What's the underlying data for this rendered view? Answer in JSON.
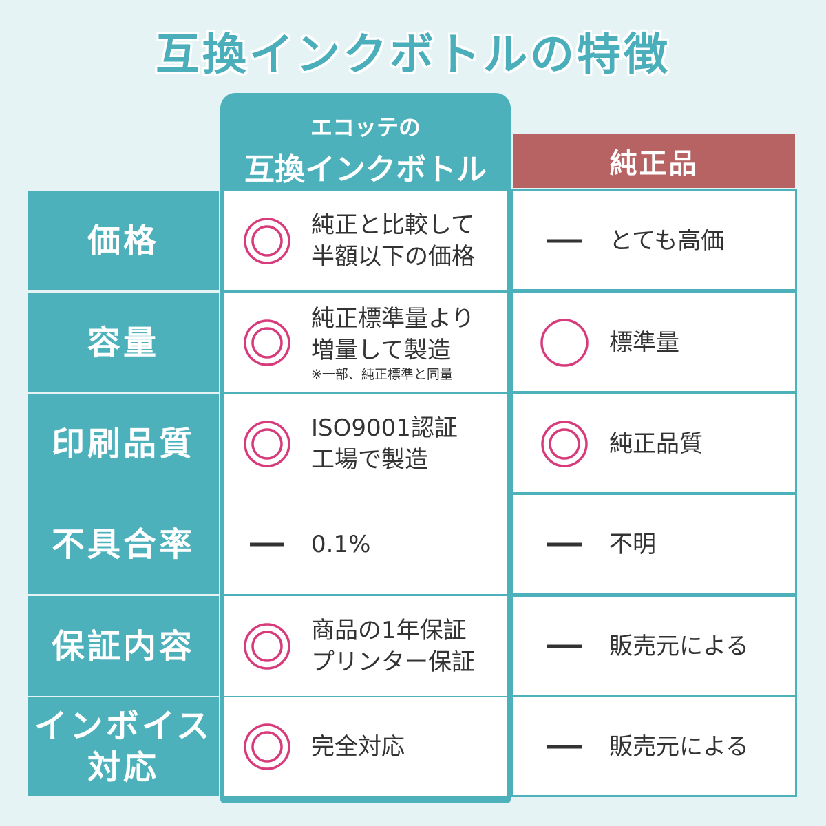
{
  "title": "互換インクボトルの特徴",
  "columns": {
    "ours": [
      "エコッテの",
      "互換インクボトル"
    ],
    "genuine": "純正品"
  },
  "rows": [
    {
      "label": [
        "価格"
      ],
      "ours": {
        "mark": "◎",
        "text": [
          "純正と比較して",
          "半額以下の価格"
        ]
      },
      "genuine": {
        "mark": "—",
        "text": [
          "とても高価"
        ]
      }
    },
    {
      "label": [
        "容量"
      ],
      "ours": {
        "mark": "◎",
        "text": [
          "純正標準量より",
          "増量して製造"
        ],
        "note": "※一部、純正標準と同量"
      },
      "genuine": {
        "mark": "○",
        "text": [
          "標準量"
        ]
      }
    },
    {
      "label": [
        "印刷品質"
      ],
      "ours": {
        "mark": "◎",
        "text": [
          "ISO9001認証",
          "工場で製造"
        ]
      },
      "genuine": {
        "mark": "◎",
        "text": [
          "純正品質"
        ]
      }
    },
    {
      "label": [
        "不具合率"
      ],
      "ours": {
        "mark": "—",
        "text": [
          "0.1%"
        ]
      },
      "genuine": {
        "mark": "—",
        "text": [
          "不明"
        ]
      }
    },
    {
      "label": [
        "保証内容"
      ],
      "ours": {
        "mark": "◎",
        "text": [
          "商品の1年保証",
          "プリンター保証"
        ]
      },
      "genuine": {
        "mark": "—",
        "text": [
          "販売元による"
        ]
      }
    },
    {
      "label": [
        "インボイス",
        "対応"
      ],
      "ours": {
        "mark": "◎",
        "text": [
          "完全対応"
        ]
      },
      "genuine": {
        "mark": "—",
        "text": [
          "販売元による"
        ]
      }
    }
  ]
}
